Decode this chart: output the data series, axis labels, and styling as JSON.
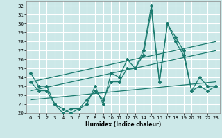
{
  "xlabel": "Humidex (Indice chaleur)",
  "bg_color": "#cce8e8",
  "grid_color": "#ffffff",
  "line_color": "#1a7a6e",
  "xlim": [
    -0.5,
    23.5
  ],
  "ylim": [
    20,
    32.5
  ],
  "yticks": [
    20,
    21,
    22,
    23,
    24,
    25,
    26,
    27,
    28,
    29,
    30,
    31,
    32
  ],
  "xticks": [
    0,
    1,
    2,
    3,
    4,
    5,
    6,
    7,
    8,
    9,
    10,
    11,
    12,
    13,
    14,
    15,
    16,
    17,
    18,
    19,
    20,
    21,
    22,
    23
  ],
  "series1_x": [
    0,
    1,
    2,
    3,
    4,
    5,
    6,
    7,
    8,
    9,
    10,
    11,
    12,
    13,
    14,
    15,
    16,
    17,
    18,
    19,
    20,
    21,
    22,
    23
  ],
  "series1_y": [
    24.5,
    23.0,
    23.0,
    21.0,
    20.0,
    20.5,
    20.5,
    21.0,
    23.0,
    21.0,
    24.5,
    24.0,
    26.0,
    25.0,
    27.0,
    32.0,
    23.5,
    30.0,
    28.5,
    27.0,
    22.5,
    24.0,
    23.0,
    23.0
  ],
  "series2_x": [
    0,
    1,
    2,
    3,
    4,
    5,
    6,
    7,
    8,
    9,
    10,
    11,
    12,
    13,
    14,
    15,
    16,
    17,
    18,
    19,
    20,
    21,
    22,
    23
  ],
  "series2_y": [
    23.5,
    22.5,
    22.5,
    21.0,
    20.5,
    20.0,
    20.5,
    21.5,
    22.5,
    21.5,
    23.5,
    23.5,
    25.0,
    25.0,
    26.5,
    31.5,
    23.5,
    30.0,
    28.0,
    26.5,
    22.5,
    23.0,
    22.5,
    23.0
  ],
  "trend1_x": [
    0,
    23
  ],
  "trend1_y": [
    23.5,
    28.0
  ],
  "trend2_x": [
    0,
    23
  ],
  "trend2_y": [
    22.5,
    27.0
  ],
  "trend3_x": [
    0,
    23
  ],
  "trend3_y": [
    21.5,
    23.5
  ]
}
